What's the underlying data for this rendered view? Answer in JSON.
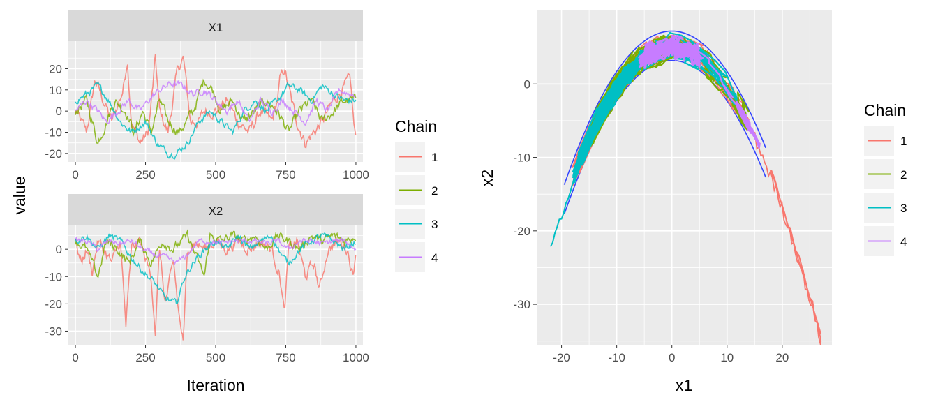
{
  "colors": {
    "panel_bg": "#ebebeb",
    "strip_bg": "#d9d9d9",
    "grid": "#ffffff",
    "series": [
      "#F8766D",
      "#7CAE00",
      "#00BFC4",
      "#C77CFF"
    ],
    "blue_boundary": "#3344ff"
  },
  "chart_data": [
    {
      "type": "line",
      "facet": "X1",
      "strip_label": "X1",
      "xlim": [
        -25,
        1025
      ],
      "ylim": [
        -24,
        33
      ],
      "x_ticks": [
        0,
        250,
        500,
        750,
        1000
      ],
      "x_tick_labels": [
        "0",
        "250",
        "500",
        "750",
        "1000"
      ],
      "y_ticks": [
        -20,
        -10,
        0,
        10,
        20
      ],
      "y_tick_labels": [
        "-20",
        "-10",
        "0",
        "10",
        "20"
      ],
      "grid": true,
      "series": [
        {
          "name": "1",
          "anchors": [
            [
              0,
              0
            ],
            [
              40,
              -10
            ],
            [
              70,
              15
            ],
            [
              100,
              5
            ],
            [
              130,
              -5
            ],
            [
              170,
              10
            ],
            [
              185,
              25
            ],
            [
              200,
              -5
            ],
            [
              230,
              -15
            ],
            [
              260,
              -10
            ],
            [
              275,
              10
            ],
            [
              285,
              25
            ],
            [
              300,
              0
            ],
            [
              330,
              -10
            ],
            [
              365,
              20
            ],
            [
              385,
              25
            ],
            [
              410,
              -5
            ],
            [
              440,
              -5
            ],
            [
              460,
              0
            ],
            [
              500,
              0
            ],
            [
              540,
              5
            ],
            [
              580,
              -5
            ],
            [
              620,
              -10
            ],
            [
              660,
              0
            ],
            [
              700,
              -5
            ],
            [
              720,
              5
            ],
            [
              730,
              15
            ],
            [
              745,
              20
            ],
            [
              770,
              5
            ],
            [
              790,
              -5
            ],
            [
              820,
              -15
            ],
            [
              850,
              -10
            ],
            [
              880,
              -5
            ],
            [
              920,
              5
            ],
            [
              950,
              10
            ],
            [
              980,
              15
            ],
            [
              995,
              -10
            ],
            [
              1000,
              -13
            ]
          ],
          "amp": 3.5
        },
        {
          "name": "2",
          "anchors": [
            [
              0,
              0
            ],
            [
              40,
              5
            ],
            [
              80,
              -15
            ],
            [
              110,
              -5
            ],
            [
              140,
              5
            ],
            [
              180,
              0
            ],
            [
              210,
              -10
            ],
            [
              240,
              0
            ],
            [
              270,
              -10
            ],
            [
              300,
              5
            ],
            [
              330,
              -5
            ],
            [
              370,
              -10
            ],
            [
              420,
              0
            ],
            [
              460,
              15
            ],
            [
              490,
              10
            ],
            [
              520,
              0
            ],
            [
              560,
              5
            ],
            [
              600,
              -5
            ],
            [
              640,
              0
            ],
            [
              680,
              5
            ],
            [
              720,
              0
            ],
            [
              760,
              -10
            ],
            [
              800,
              0
            ],
            [
              840,
              5
            ],
            [
              880,
              -5
            ],
            [
              920,
              0
            ],
            [
              960,
              5
            ],
            [
              1000,
              5
            ]
          ],
          "amp": 3
        },
        {
          "name": "3",
          "anchors": [
            [
              0,
              5
            ],
            [
              40,
              8
            ],
            [
              80,
              12
            ],
            [
              120,
              5
            ],
            [
              160,
              -5
            ],
            [
              200,
              -10
            ],
            [
              250,
              -5
            ],
            [
              290,
              -15
            ],
            [
              330,
              -20
            ],
            [
              360,
              -20
            ],
            [
              400,
              -15
            ],
            [
              440,
              -5
            ],
            [
              480,
              0
            ],
            [
              520,
              -5
            ],
            [
              560,
              -10
            ],
            [
              600,
              0
            ],
            [
              640,
              5
            ],
            [
              680,
              0
            ],
            [
              720,
              5
            ],
            [
              760,
              12
            ],
            [
              800,
              10
            ],
            [
              840,
              5
            ],
            [
              880,
              12
            ],
            [
              920,
              8
            ],
            [
              960,
              5
            ],
            [
              1000,
              5
            ]
          ],
          "amp": 2
        },
        {
          "name": "4",
          "anchors": [
            [
              0,
              0
            ],
            [
              40,
              5
            ],
            [
              80,
              0
            ],
            [
              110,
              -5
            ],
            [
              150,
              0
            ],
            [
              190,
              5
            ],
            [
              230,
              0
            ],
            [
              260,
              5
            ],
            [
              300,
              10
            ],
            [
              340,
              13
            ],
            [
              380,
              12
            ],
            [
              420,
              8
            ],
            [
              460,
              10
            ],
            [
              500,
              5
            ],
            [
              540,
              0
            ],
            [
              580,
              5
            ],
            [
              620,
              -5
            ],
            [
              660,
              5
            ],
            [
              700,
              0
            ],
            [
              740,
              5
            ],
            [
              780,
              0
            ],
            [
              820,
              -5
            ],
            [
              860,
              5
            ],
            [
              900,
              0
            ],
            [
              940,
              10
            ],
            [
              980,
              8
            ],
            [
              1000,
              8
            ]
          ],
          "amp": 2
        }
      ]
    },
    {
      "type": "line",
      "facet": "X2",
      "strip_label": "X2",
      "xlim": [
        -25,
        1025
      ],
      "ylim": [
        -35,
        9
      ],
      "x_ticks": [
        0,
        250,
        500,
        750,
        1000
      ],
      "x_tick_labels": [
        "0",
        "250",
        "500",
        "750",
        "1000"
      ],
      "y_ticks": [
        -30,
        -20,
        -10,
        0
      ],
      "y_tick_labels": [
        "-30",
        "-20",
        "-10",
        "0"
      ],
      "grid": true,
      "series": [
        {
          "name": "1",
          "anchors": [
            [
              0,
              3
            ],
            [
              20,
              -5
            ],
            [
              40,
              0
            ],
            [
              60,
              -8
            ],
            [
              80,
              3
            ],
            [
              100,
              0
            ],
            [
              130,
              -5
            ],
            [
              160,
              3
            ],
            [
              180,
              -28
            ],
            [
              200,
              0
            ],
            [
              230,
              3
            ],
            [
              270,
              -10
            ],
            [
              285,
              -30
            ],
            [
              300,
              0
            ],
            [
              320,
              -20
            ],
            [
              350,
              -5
            ],
            [
              370,
              -25
            ],
            [
              385,
              -34
            ],
            [
              400,
              0
            ],
            [
              420,
              3
            ],
            [
              460,
              0
            ],
            [
              500,
              3
            ],
            [
              540,
              0
            ],
            [
              580,
              3
            ],
            [
              620,
              0
            ],
            [
              660,
              3
            ],
            [
              700,
              0
            ],
            [
              730,
              -10
            ],
            [
              745,
              -24
            ],
            [
              760,
              0
            ],
            [
              790,
              3
            ],
            [
              820,
              -10
            ],
            [
              850,
              -5
            ],
            [
              870,
              -15
            ],
            [
              900,
              0
            ],
            [
              940,
              3
            ],
            [
              970,
              0
            ],
            [
              990,
              -10
            ],
            [
              1000,
              0
            ]
          ],
          "amp": 2.5
        },
        {
          "name": "2",
          "anchors": [
            [
              0,
              3
            ],
            [
              40,
              0
            ],
            [
              80,
              -10
            ],
            [
              110,
              3
            ],
            [
              150,
              0
            ],
            [
              190,
              -5
            ],
            [
              230,
              3
            ],
            [
              270,
              -5
            ],
            [
              310,
              3
            ],
            [
              350,
              0
            ],
            [
              400,
              5
            ],
            [
              440,
              -5
            ],
            [
              460,
              -10
            ],
            [
              480,
              5
            ],
            [
              520,
              3
            ],
            [
              560,
              5
            ],
            [
              600,
              3
            ],
            [
              640,
              5
            ],
            [
              680,
              0
            ],
            [
              720,
              5
            ],
            [
              760,
              3
            ],
            [
              800,
              0
            ],
            [
              840,
              5
            ],
            [
              880,
              3
            ],
            [
              920,
              5
            ],
            [
              960,
              3
            ],
            [
              1000,
              5
            ]
          ],
          "amp": 2
        },
        {
          "name": "3",
          "anchors": [
            [
              0,
              3
            ],
            [
              40,
              5
            ],
            [
              80,
              0
            ],
            [
              120,
              5
            ],
            [
              160,
              3
            ],
            [
              200,
              -3
            ],
            [
              240,
              -8
            ],
            [
              280,
              -12
            ],
            [
              320,
              -18
            ],
            [
              360,
              -20
            ],
            [
              390,
              -10
            ],
            [
              420,
              -5
            ],
            [
              460,
              0
            ],
            [
              500,
              3
            ],
            [
              540,
              0
            ],
            [
              580,
              5
            ],
            [
              620,
              0
            ],
            [
              660,
              3
            ],
            [
              700,
              5
            ],
            [
              740,
              -3
            ],
            [
              760,
              -5
            ],
            [
              800,
              0
            ],
            [
              840,
              3
            ],
            [
              880,
              5
            ],
            [
              920,
              3
            ],
            [
              960,
              0
            ],
            [
              1000,
              3
            ]
          ],
          "amp": 1.5
        },
        {
          "name": "4",
          "anchors": [
            [
              0,
              3
            ],
            [
              40,
              3
            ],
            [
              80,
              0
            ],
            [
              120,
              3
            ],
            [
              160,
              2
            ],
            [
              200,
              3
            ],
            [
              240,
              0
            ],
            [
              280,
              -2
            ],
            [
              320,
              -3
            ],
            [
              360,
              -5
            ],
            [
              400,
              -2
            ],
            [
              440,
              3
            ],
            [
              480,
              3
            ],
            [
              520,
              2
            ],
            [
              560,
              3
            ],
            [
              600,
              3
            ],
            [
              640,
              3
            ],
            [
              680,
              2
            ],
            [
              720,
              3
            ],
            [
              760,
              0
            ],
            [
              800,
              3
            ],
            [
              840,
              3
            ],
            [
              880,
              2
            ],
            [
              920,
              3
            ],
            [
              960,
              3
            ],
            [
              1000,
              0
            ]
          ],
          "amp": 1.2
        }
      ]
    },
    {
      "type": "scatter",
      "facet": "joint",
      "description": "path of x1 vs x2, banana-shaped: x2 = 5 - 0.055 * x1^2 (approx)",
      "xlim": [
        -24.5,
        29
      ],
      "ylim": [
        -35.5,
        10
      ],
      "x_ticks": [
        -20,
        -10,
        0,
        10,
        20
      ],
      "x_tick_labels": [
        "-20",
        "-10",
        "0",
        "10",
        "20"
      ],
      "y_ticks": [
        -30,
        -20,
        -10,
        0
      ],
      "y_tick_labels": [
        "-30",
        "-20",
        "-10",
        "0"
      ],
      "xlabel": "x1",
      "ylabel": "x2",
      "grid": true,
      "series": [
        {
          "name": "1",
          "x_range": [
            -19,
            27
          ]
        },
        {
          "name": "2",
          "x_range": [
            -15,
            14
          ]
        },
        {
          "name": "3",
          "x_range": [
            -22,
            16
          ]
        },
        {
          "name": "4",
          "x_range": [
            -6,
            16
          ]
        }
      ]
    }
  ],
  "shared": {
    "ylabel_left": "value",
    "xlabel_left": "Iteration"
  },
  "legend_left": {
    "title": "Chain",
    "items": [
      "1",
      "2",
      "3",
      "4"
    ]
  },
  "legend_right": {
    "title": "Chain",
    "items": [
      "1",
      "2",
      "3",
      "4"
    ]
  }
}
